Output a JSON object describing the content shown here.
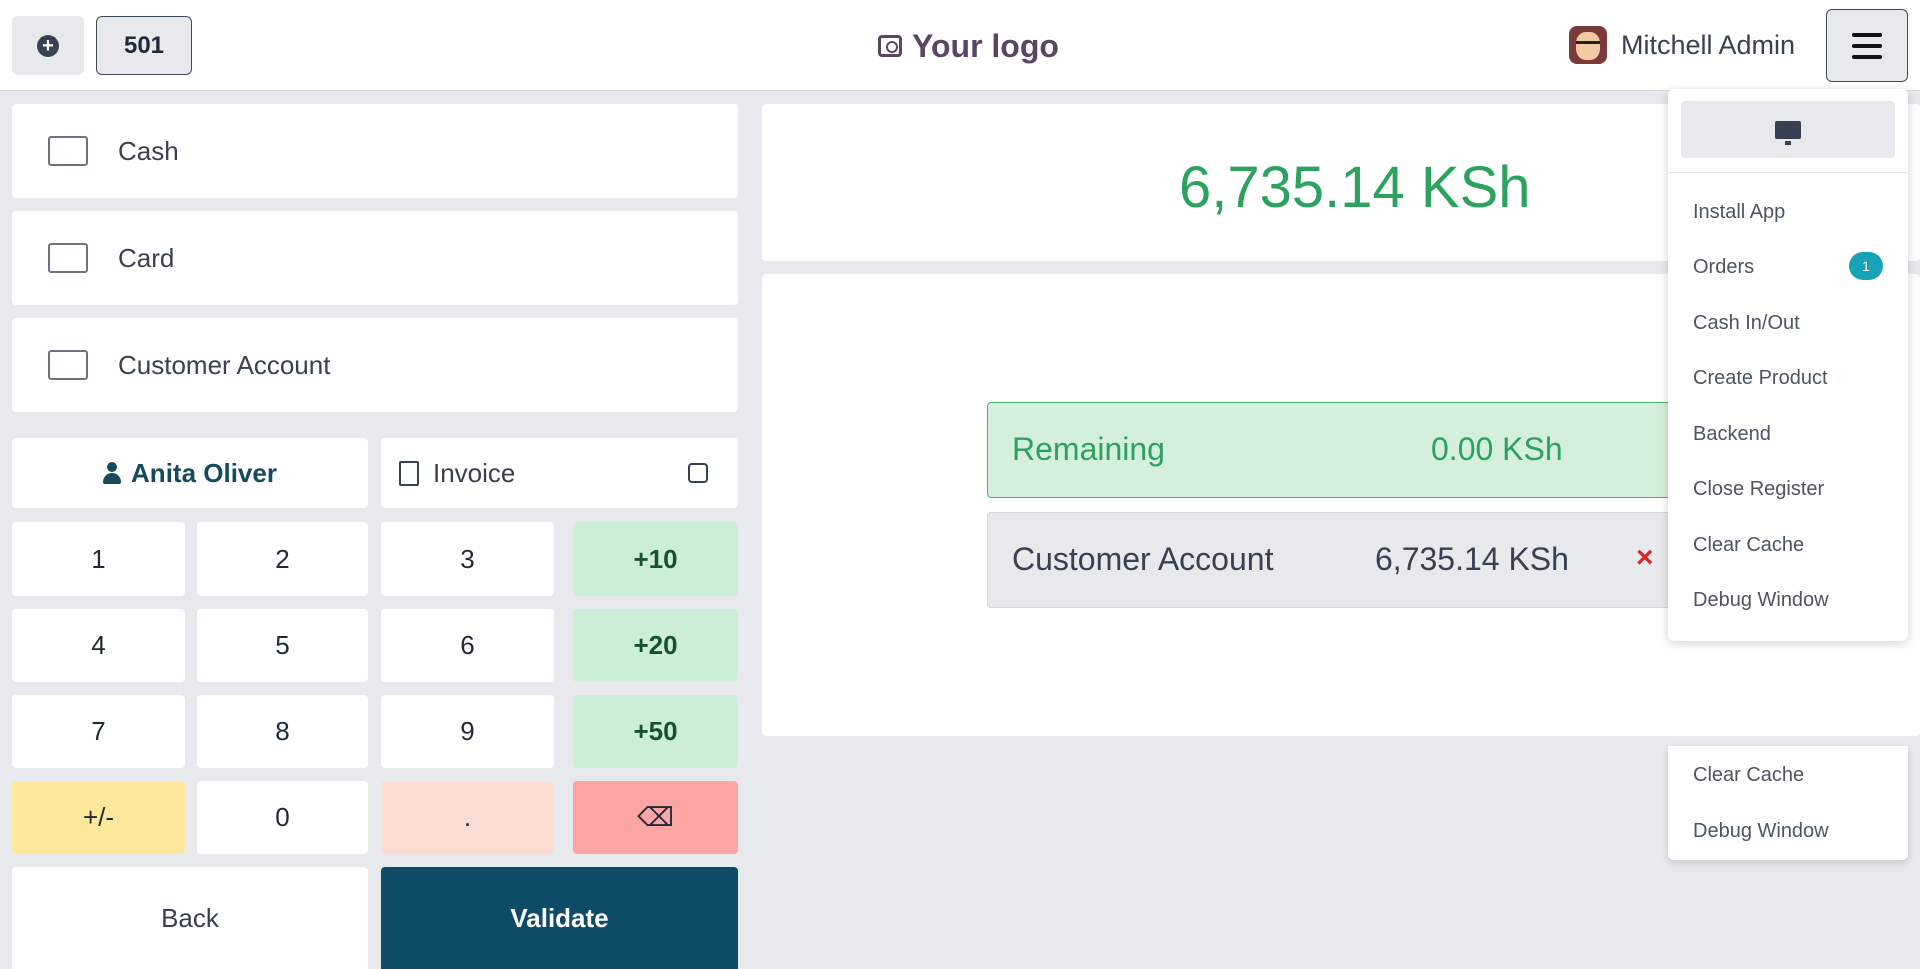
{
  "header": {
    "order_number": "501",
    "logo_text": "Your logo",
    "user_name": "Mitchell Admin"
  },
  "payment_methods": [
    {
      "label": "Cash",
      "icon": "cash-icon"
    },
    {
      "label": "Card",
      "icon": "card-icon"
    },
    {
      "label": "Customer Account",
      "icon": "wallet-clock-icon"
    }
  ],
  "partner": {
    "name": "Anita Oliver"
  },
  "invoice": {
    "label": "Invoice",
    "checked": false
  },
  "numpad": {
    "keys": [
      "1",
      "2",
      "3",
      "+10",
      "4",
      "5",
      "6",
      "+20",
      "7",
      "8",
      "9",
      "+50",
      "+/-",
      "0",
      ".",
      "⌫"
    ]
  },
  "actions": {
    "back_label": "Back",
    "validate_label": "Validate"
  },
  "summary": {
    "total": "6,735.14 KSh"
  },
  "remaining": {
    "label": "Remaining",
    "value": "0.00 KSh"
  },
  "payment_line": {
    "label": "Customer Account",
    "value": "6,735.14 KSh",
    "delete_symbol": "×"
  },
  "menu": {
    "items": [
      "Install App",
      "Orders",
      "Cash In/Out",
      "Create Product",
      "Backend",
      "Close Register",
      "Clear Cache",
      "Debug Window"
    ],
    "orders_badge": "1",
    "ghost_items": [
      "Clear Cache",
      "Debug Window"
    ]
  },
  "colors": {
    "primary": "#0e4b66",
    "success": "#2ca25f",
    "badge": "#17a2b8",
    "danger": "#dc2626"
  }
}
